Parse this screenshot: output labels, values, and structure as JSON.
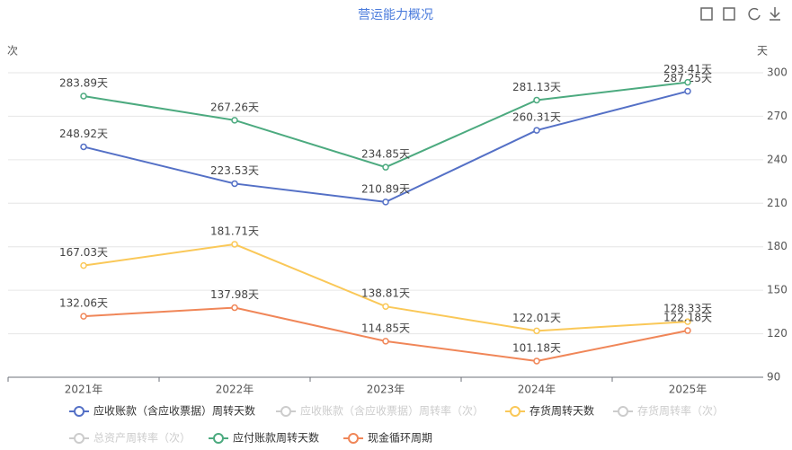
{
  "chart_data": {
    "type": "line",
    "title": "营运能力概况",
    "y_label": "次",
    "y2_label": "天",
    "categories": [
      "2021年",
      "2022年",
      "2023年",
      "2024年",
      "2025年"
    ],
    "y2lim": [
      90,
      300
    ],
    "y2ticks": [
      90,
      120,
      150,
      180,
      210,
      240,
      270,
      300
    ],
    "grid": true,
    "series": [
      {
        "name": "应收账款（含应收票据）周转天数",
        "color": "#5470c6",
        "axis": "y2",
        "values": [
          248.92,
          223.53,
          210.89,
          260.31,
          287.25
        ],
        "value_labels": [
          "248.92天",
          "223.53天",
          "210.89天",
          "260.31天",
          "287.25天"
        ]
      },
      {
        "name": "应收账款（含应收票据）周转率（次）",
        "color": "#cccccc",
        "visible": false
      },
      {
        "name": "存货周转天数",
        "color": "#fac858",
        "axis": "y2",
        "values": [
          167.03,
          181.71,
          138.81,
          122.01,
          128.33
        ],
        "value_labels": [
          "167.03天",
          "181.71天",
          "138.81天",
          "122.01天",
          "128.33天"
        ]
      },
      {
        "name": "存货周转率（次）",
        "color": "#cccccc",
        "visible": false
      },
      {
        "name": "总资产周转率（次）",
        "color": "#cccccc",
        "visible": false
      },
      {
        "name": "应付账款周转天数",
        "color": "#4caa7f",
        "axis": "y2",
        "values": [
          283.89,
          267.26,
          234.85,
          281.13,
          293.41
        ],
        "value_labels": [
          "283.89天",
          "267.26天",
          "234.85天",
          "281.13天",
          "293.41天"
        ]
      },
      {
        "name": "现金循环周期",
        "color": "#f08658",
        "axis": "y2",
        "values": [
          132.06,
          137.98,
          114.85,
          101.18,
          122.18
        ],
        "value_labels": [
          "132.06天",
          "137.98天",
          "114.85天",
          "101.18天",
          "122.18天"
        ]
      }
    ]
  }
}
